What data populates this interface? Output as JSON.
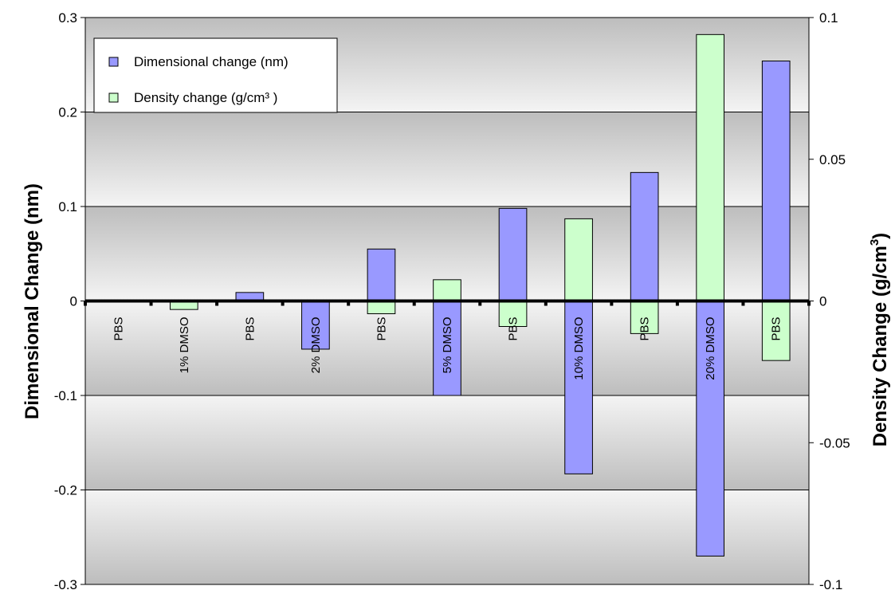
{
  "chart_data": {
    "type": "bar",
    "categories": [
      "PBS",
      "1% DMSO",
      "PBS",
      "2% DMSO",
      "PBS",
      "5% DMSO",
      "PBS",
      "10% DMSO",
      "PBS",
      "20% DMSO",
      "PBS"
    ],
    "series": [
      {
        "name": "Dimensional change (nm)",
        "axis": "left",
        "color": "#9999ff",
        "values": [
          0,
          0,
          0.009,
          -0.051,
          0.055,
          -0.1,
          0.098,
          -0.183,
          0.136,
          -0.27,
          0.254
        ]
      },
      {
        "name": "Density change (g/cm³ )",
        "axis": "right",
        "color": "#ccffcc",
        "values": [
          0,
          -0.003,
          0,
          0,
          -0.0045,
          0.0075,
          -0.009,
          0.029,
          -0.0115,
          0.094,
          -0.021
        ]
      }
    ],
    "ylabel": "Dimensional Change (nm)",
    "y2label_main": "Density Change (g/cm",
    "y2label_sup": "3",
    "y2label_close": ")",
    "ylim": [
      -0.3,
      0.3
    ],
    "y2lim": [
      -0.1,
      0.1
    ],
    "yticks": [
      -0.3,
      -0.2,
      -0.1,
      0,
      0.1,
      0.2,
      0.3
    ],
    "yticklabels": [
      "-0.3",
      "-0.2",
      "-0.1",
      "0",
      "0.1",
      "0.2",
      "0.3"
    ],
    "y2ticks": [
      -0.1,
      -0.05,
      0,
      0.05,
      0.1
    ],
    "y2ticklabels": [
      "-0.1",
      "-0.05",
      "0",
      "0.05",
      "0.1"
    ],
    "grid": true,
    "legend_position": "top-left"
  }
}
